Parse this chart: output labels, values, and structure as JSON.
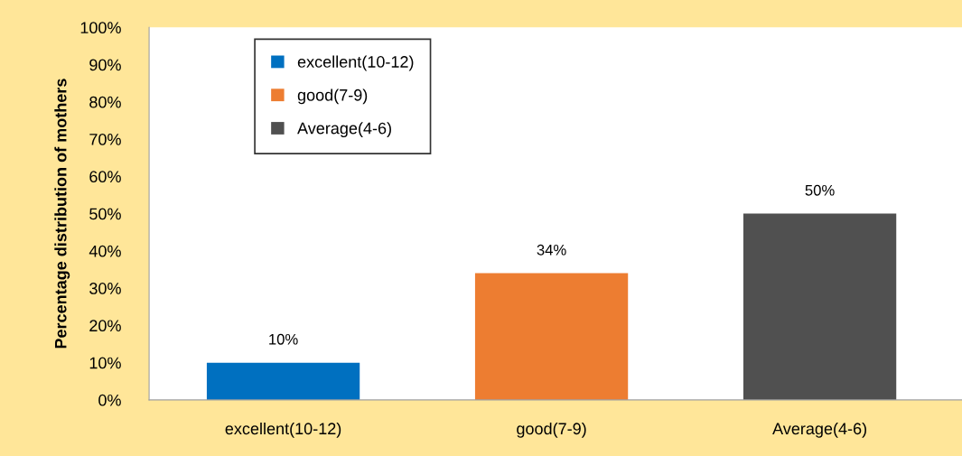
{
  "chart_data": {
    "type": "bar",
    "ylabel": "Percentage distribution of mothers",
    "categories": [
      "excellent(10-12)",
      "good(7-9)",
      "Average(4-6)"
    ],
    "series": [
      {
        "name": "excellent(10-12)",
        "color": "#0070c0",
        "values": [
          10,
          null,
          null
        ],
        "value_labels": [
          "10%",
          null,
          null
        ]
      },
      {
        "name": "good(7-9)",
        "color": "#ed7d31",
        "values": [
          null,
          34,
          null
        ],
        "value_labels": [
          null,
          "34%",
          null
        ]
      },
      {
        "name": "Average(4-6)",
        "color": "#505050",
        "values": [
          null,
          null,
          50
        ],
        "value_labels": [
          null,
          null,
          "50%"
        ]
      }
    ],
    "ylim": [
      0,
      100
    ],
    "yticks": [
      {
        "value": 0,
        "label": "0%"
      },
      {
        "value": 10,
        "label": "10%"
      },
      {
        "value": 20,
        "label": "20%"
      },
      {
        "value": 30,
        "label": "30%"
      },
      {
        "value": 40,
        "label": "40%"
      },
      {
        "value": 50,
        "label": "50%"
      },
      {
        "value": 60,
        "label": "60%"
      },
      {
        "value": 70,
        "label": "70%"
      },
      {
        "value": 80,
        "label": "80%"
      },
      {
        "value": 90,
        "label": "90%"
      },
      {
        "value": 100,
        "label": "100%"
      }
    ],
    "grid": false,
    "legend": "top left"
  }
}
